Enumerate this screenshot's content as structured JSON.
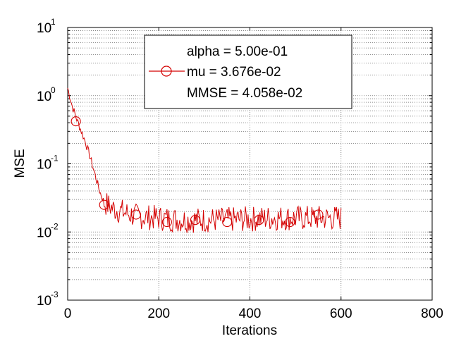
{
  "chart_data": {
    "type": "line",
    "title": "",
    "xlabel": "Iterations",
    "ylabel": "MSE",
    "xlim": [
      0,
      800
    ],
    "ylim": [
      0.001,
      10
    ],
    "yscale": "log",
    "grid": true,
    "legend_placement": "top-center",
    "x_ticks": [
      0,
      200,
      400,
      600,
      800
    ],
    "x_tick_labels": [
      "0",
      "200",
      "400",
      "600",
      "800"
    ],
    "y_ticks": [
      {
        "value": 10,
        "base": "10",
        "exp": "1"
      },
      {
        "value": 1,
        "base": "10",
        "exp": "0"
      },
      {
        "value": 0.1,
        "base": "10",
        "exp": "-1"
      },
      {
        "value": 0.01,
        "base": "10",
        "exp": "-2"
      },
      {
        "value": 0.001,
        "base": "10",
        "exp": "-3"
      }
    ],
    "legend": {
      "lines": [
        "alpha = 5.00e-01",
        "mu = 3.676e-02",
        "MMSE = 4.058e-02"
      ],
      "marker_line_index": 1
    },
    "series": [
      {
        "color": "#d40000",
        "marker": "circle",
        "x_start": 0,
        "x_end": 600,
        "noise_seed": 7,
        "control_points": [
          {
            "x": 0,
            "y": 1.3
          },
          {
            "x": 10,
            "y": 0.7
          },
          {
            "x": 20,
            "y": 0.45
          },
          {
            "x": 30,
            "y": 0.3
          },
          {
            "x": 40,
            "y": 0.2
          },
          {
            "x": 50,
            "y": 0.12
          },
          {
            "x": 60,
            "y": 0.07
          },
          {
            "x": 70,
            "y": 0.04
          },
          {
            "x": 80,
            "y": 0.027
          },
          {
            "x": 100,
            "y": 0.022
          },
          {
            "x": 150,
            "y": 0.017
          },
          {
            "x": 250,
            "y": 0.015
          },
          {
            "x": 350,
            "y": 0.015
          },
          {
            "x": 450,
            "y": 0.016
          },
          {
            "x": 600,
            "y": 0.016
          }
        ],
        "marker_points": [
          {
            "x": 18,
            "y": 0.42
          },
          {
            "x": 80,
            "y": 0.025
          },
          {
            "x": 150,
            "y": 0.018
          },
          {
            "x": 218,
            "y": 0.014
          },
          {
            "x": 280,
            "y": 0.015
          },
          {
            "x": 350,
            "y": 0.014
          },
          {
            "x": 420,
            "y": 0.015
          },
          {
            "x": 488,
            "y": 0.014
          },
          {
            "x": 550,
            "y": 0.018
          }
        ]
      }
    ]
  }
}
